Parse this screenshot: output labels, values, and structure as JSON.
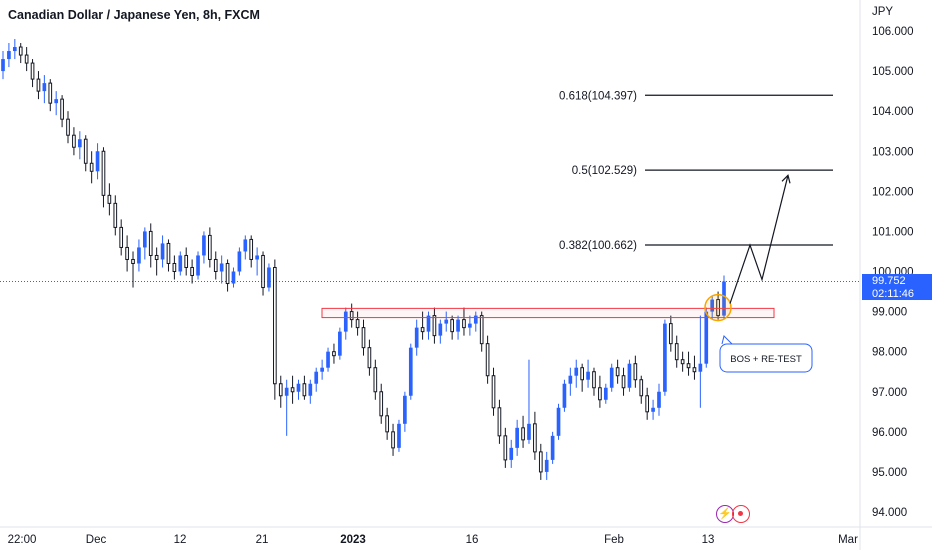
{
  "chart_data": {
    "type": "candlestick",
    "title": "Canadian Dollar / Japanese Yen, 8h, FXCM",
    "currency": "JPY",
    "y_ticks": [
      "106.000",
      "105.000",
      "104.000",
      "103.000",
      "102.000",
      "101.000",
      "100.000",
      "99.000",
      "98.000",
      "97.000",
      "96.000",
      "95.000",
      "94.000"
    ],
    "ylim": [
      93.85,
      106.6
    ],
    "x_ticks": [
      "22:00",
      "Dec",
      "12",
      "21",
      "2023",
      "16",
      "Feb",
      "13",
      "Mar"
    ],
    "last_price": "99.752",
    "countdown": "02:11:46",
    "fib_levels": [
      {
        "label": "0.618(104.397)",
        "value": 104.397
      },
      {
        "label": "0.5(102.529)",
        "value": 102.529
      },
      {
        "label": "0.382(100.662)",
        "value": 100.662
      }
    ],
    "zone": {
      "top": 99.08,
      "bottom": 98.85
    },
    "annotation": "BOS + RE-TEST",
    "colors": {
      "up": "#2962ff",
      "down": "#131722",
      "fib": "#131722",
      "zone": "#f23645",
      "circle": "#f7a600",
      "price_line": "#2962ff"
    },
    "candles": [
      [
        105.0,
        105.5,
        104.8,
        105.3
      ],
      [
        105.3,
        105.7,
        105.1,
        105.5
      ],
      [
        105.5,
        105.8,
        105.3,
        105.6
      ],
      [
        105.6,
        105.7,
        105.2,
        105.4
      ],
      [
        105.4,
        105.6,
        105.0,
        105.2
      ],
      [
        105.2,
        105.3,
        104.6,
        104.8
      ],
      [
        104.8,
        105.0,
        104.3,
        104.5
      ],
      [
        104.5,
        104.9,
        104.2,
        104.7
      ],
      [
        104.7,
        104.8,
        104.0,
        104.2
      ],
      [
        104.2,
        104.5,
        103.9,
        104.3
      ],
      [
        104.3,
        104.4,
        103.6,
        103.8
      ],
      [
        103.8,
        104.0,
        103.2,
        103.4
      ],
      [
        103.4,
        103.6,
        102.9,
        103.1
      ],
      [
        103.1,
        103.5,
        102.8,
        103.3
      ],
      [
        103.3,
        103.4,
        102.5,
        102.7
      ],
      [
        102.7,
        103.0,
        102.2,
        102.5
      ],
      [
        102.5,
        103.2,
        102.3,
        103.0
      ],
      [
        103.0,
        103.1,
        101.6,
        101.9
      ],
      [
        101.9,
        102.2,
        101.4,
        101.7
      ],
      [
        101.7,
        101.9,
        100.9,
        101.1
      ],
      [
        101.1,
        101.3,
        100.4,
        100.6
      ],
      [
        100.6,
        100.9,
        100.0,
        100.3
      ],
      [
        100.3,
        100.5,
        99.6,
        100.2
      ],
      [
        100.2,
        100.8,
        100.0,
        100.6
      ],
      [
        100.6,
        101.1,
        100.3,
        101.0
      ],
      [
        101.0,
        101.2,
        100.1,
        100.4
      ],
      [
        100.4,
        100.6,
        99.9,
        100.3
      ],
      [
        100.3,
        100.9,
        100.1,
        100.7
      ],
      [
        100.7,
        100.8,
        100.0,
        100.2
      ],
      [
        100.2,
        100.4,
        99.8,
        100.0
      ],
      [
        100.0,
        100.5,
        99.9,
        100.4
      ],
      [
        100.4,
        100.6,
        99.9,
        100.1
      ],
      [
        100.1,
        100.3,
        99.7,
        99.9
      ],
      [
        99.9,
        100.5,
        99.8,
        100.4
      ],
      [
        100.4,
        101.0,
        100.2,
        100.9
      ],
      [
        100.9,
        101.1,
        100.1,
        100.3
      ],
      [
        100.3,
        100.5,
        99.8,
        100.0
      ],
      [
        100.0,
        100.4,
        99.7,
        100.2
      ],
      [
        100.2,
        100.3,
        99.5,
        99.7
      ],
      [
        99.7,
        100.1,
        99.6,
        100.0
      ],
      [
        100.0,
        100.6,
        99.9,
        100.5
      ],
      [
        100.5,
        100.9,
        100.3,
        100.8
      ],
      [
        100.8,
        100.9,
        100.1,
        100.3
      ],
      [
        100.3,
        100.6,
        99.9,
        100.4
      ],
      [
        100.4,
        100.5,
        99.4,
        99.6
      ],
      [
        99.6,
        100.2,
        99.5,
        100.1
      ],
      [
        100.1,
        100.3,
        96.8,
        97.2
      ],
      [
        97.2,
        97.4,
        96.6,
        96.9
      ],
      [
        96.9,
        97.3,
        95.9,
        97.1
      ],
      [
        97.1,
        97.4,
        96.7,
        97.0
      ],
      [
        97.0,
        97.3,
        96.8,
        97.2
      ],
      [
        97.2,
        97.4,
        96.8,
        96.9
      ],
      [
        96.9,
        97.3,
        96.7,
        97.2
      ],
      [
        97.2,
        97.6,
        97.0,
        97.5
      ],
      [
        97.5,
        97.8,
        97.3,
        97.6
      ],
      [
        97.6,
        98.1,
        97.5,
        98.0
      ],
      [
        98.0,
        98.2,
        97.7,
        97.9
      ],
      [
        97.9,
        98.6,
        97.8,
        98.5
      ],
      [
        98.5,
        99.1,
        98.3,
        99.0
      ],
      [
        99.0,
        99.2,
        98.6,
        98.8
      ],
      [
        98.8,
        99.0,
        98.4,
        98.6
      ],
      [
        98.6,
        98.8,
        97.9,
        98.1
      ],
      [
        98.1,
        98.3,
        97.4,
        97.6
      ],
      [
        97.6,
        97.8,
        96.8,
        97.0
      ],
      [
        97.0,
        97.2,
        96.2,
        96.4
      ],
      [
        96.4,
        96.6,
        95.8,
        96.0
      ],
      [
        96.0,
        96.2,
        95.4,
        95.6
      ],
      [
        95.6,
        96.3,
        95.5,
        96.2
      ],
      [
        96.2,
        97.0,
        96.0,
        96.9
      ],
      [
        96.9,
        98.2,
        96.8,
        98.1
      ],
      [
        98.1,
        98.8,
        97.9,
        98.6
      ],
      [
        98.6,
        99.0,
        98.3,
        98.5
      ],
      [
        98.5,
        99.0,
        98.3,
        98.9
      ],
      [
        98.9,
        99.1,
        98.2,
        98.4
      ],
      [
        98.4,
        98.8,
        98.2,
        98.7
      ],
      [
        98.7,
        99.0,
        98.5,
        98.8
      ],
      [
        98.8,
        98.9,
        98.3,
        98.5
      ],
      [
        98.5,
        98.9,
        98.3,
        98.8
      ],
      [
        98.8,
        99.1,
        98.4,
        98.6
      ],
      [
        98.6,
        98.9,
        98.4,
        98.7
      ],
      [
        98.7,
        99.0,
        98.5,
        98.9
      ],
      [
        98.9,
        99.0,
        98.0,
        98.2
      ],
      [
        98.2,
        98.4,
        97.2,
        97.4
      ],
      [
        97.4,
        97.6,
        96.4,
        96.6
      ],
      [
        96.6,
        96.8,
        95.7,
        95.9
      ],
      [
        95.9,
        96.1,
        95.1,
        95.3
      ],
      [
        95.3,
        95.8,
        95.1,
        95.6
      ],
      [
        95.6,
        96.3,
        95.4,
        96.1
      ],
      [
        96.1,
        96.4,
        95.6,
        95.8
      ],
      [
        95.8,
        97.8,
        95.7,
        96.2
      ],
      [
        96.2,
        96.5,
        95.3,
        95.5
      ],
      [
        95.5,
        95.7,
        94.8,
        95.0
      ],
      [
        95.0,
        95.5,
        94.8,
        95.3
      ],
      [
        95.3,
        96.0,
        95.2,
        95.9
      ],
      [
        95.9,
        96.7,
        95.8,
        96.6
      ],
      [
        96.6,
        97.3,
        96.5,
        97.2
      ],
      [
        97.2,
        97.6,
        96.9,
        97.4
      ],
      [
        97.4,
        97.8,
        97.1,
        97.6
      ],
      [
        97.6,
        97.7,
        97.0,
        97.3
      ],
      [
        97.3,
        97.8,
        97.1,
        97.5
      ],
      [
        97.5,
        97.6,
        96.9,
        97.1
      ],
      [
        97.1,
        97.4,
        96.6,
        96.8
      ],
      [
        96.8,
        97.2,
        96.7,
        97.1
      ],
      [
        97.1,
        97.7,
        97.0,
        97.6
      ],
      [
        97.6,
        97.8,
        97.2,
        97.4
      ],
      [
        97.4,
        97.6,
        96.9,
        97.1
      ],
      [
        97.1,
        97.8,
        97.0,
        97.7
      ],
      [
        97.7,
        97.9,
        97.1,
        97.3
      ],
      [
        97.3,
        97.4,
        96.7,
        96.9
      ],
      [
        96.9,
        97.1,
        96.3,
        96.5
      ],
      [
        96.5,
        96.8,
        96.3,
        96.6
      ],
      [
        96.6,
        97.2,
        96.4,
        97.0
      ],
      [
        97.0,
        98.8,
        96.9,
        98.7
      ],
      [
        98.7,
        98.9,
        98.0,
        98.2
      ],
      [
        98.2,
        98.4,
        97.6,
        97.8
      ],
      [
        97.8,
        98.0,
        97.5,
        97.7
      ],
      [
        97.7,
        98.0,
        97.4,
        97.6
      ],
      [
        97.6,
        97.9,
        97.3,
        97.5
      ],
      [
        97.5,
        98.9,
        96.6,
        97.7
      ],
      [
        97.7,
        99.1,
        97.6,
        99.0
      ],
      [
        99.0,
        99.4,
        98.8,
        99.3
      ],
      [
        99.3,
        99.5,
        98.8,
        98.9
      ],
      [
        98.9,
        99.9,
        98.8,
        99.75
      ]
    ],
    "projection": [
      [
        99.2,
        0
      ],
      [
        100.66,
        0
      ],
      [
        99.8,
        0
      ],
      [
        102.4,
        0
      ]
    ]
  }
}
